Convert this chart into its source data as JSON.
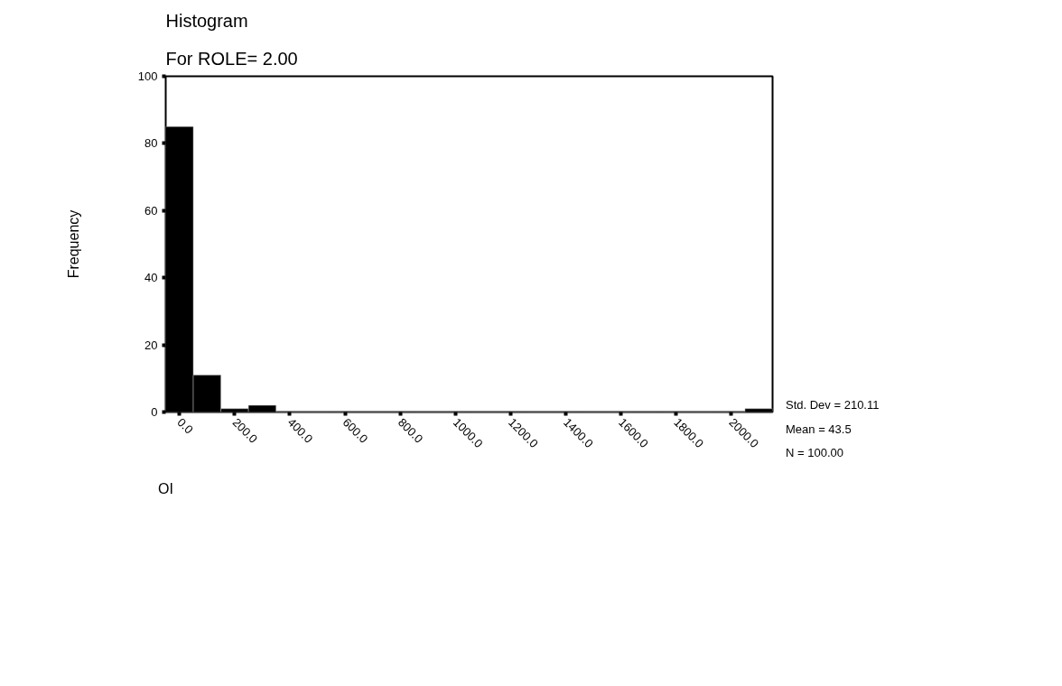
{
  "chart_data": {
    "type": "histogram",
    "title": "Histogram",
    "subtitle": "For ROLE= 2.00",
    "xlabel": "OI",
    "ylabel": "Frequency",
    "bins": [
      -50,
      50,
      150,
      250,
      350,
      450,
      550,
      650,
      750,
      850,
      950,
      1050,
      1150,
      1250,
      1350,
      1450,
      1550,
      1650,
      1750,
      1850,
      1950,
      2050,
      2150
    ],
    "values": [
      85,
      11,
      1,
      2,
      0,
      0,
      0,
      0,
      0,
      0,
      0,
      0,
      0,
      0,
      0,
      0,
      0,
      0,
      0,
      0,
      0,
      1
    ],
    "color": "#000000",
    "xlim": [
      -50,
      2150
    ],
    "ylim": [
      0,
      100
    ],
    "yticks": [
      0,
      20,
      40,
      60,
      80,
      100
    ],
    "xticks": [
      {
        "value": 0,
        "label": "0.0"
      },
      {
        "value": 200,
        "label": "200.0"
      },
      {
        "value": 400,
        "label": "400.0"
      },
      {
        "value": 600,
        "label": "600.0"
      },
      {
        "value": 800,
        "label": "800.0"
      },
      {
        "value": 1000,
        "label": "1000.0"
      },
      {
        "value": 1200,
        "label": "1200.0"
      },
      {
        "value": 1400,
        "label": "1400.0"
      },
      {
        "value": 1600,
        "label": "1600.0"
      },
      {
        "value": 1800,
        "label": "1800.0"
      },
      {
        "value": 2000,
        "label": "2000.0"
      }
    ],
    "annotations": [
      "Std. Dev = 210.11",
      "Mean = 43.5",
      "N = 100.00"
    ],
    "grid": false
  }
}
